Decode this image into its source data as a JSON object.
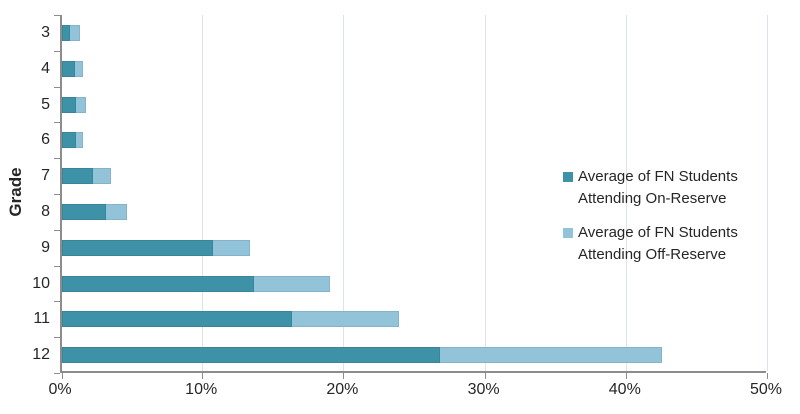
{
  "chart_data": {
    "type": "bar",
    "orientation": "horizontal",
    "stacked": true,
    "title": "",
    "xlabel": "",
    "ylabel": "Grade",
    "categories": [
      "3",
      "4",
      "5",
      "6",
      "7",
      "8",
      "9",
      "10",
      "11",
      "12"
    ],
    "series": [
      {
        "name": "Average of FN Students Attending On-Reserve",
        "color": "#3E92A8",
        "values": [
          0.6,
          0.9,
          1.0,
          1.0,
          2.2,
          3.1,
          10.7,
          13.6,
          16.3,
          26.8
        ]
      },
      {
        "name": "Average of FN Students Attending Off-Reserve",
        "color": "#92C3D8",
        "values": [
          0.7,
          0.6,
          0.7,
          0.5,
          1.3,
          1.5,
          2.6,
          5.4,
          7.6,
          15.7
        ]
      }
    ],
    "xlim": [
      0,
      50
    ],
    "x_tick_labels": [
      "0%",
      "10%",
      "20%",
      "30%",
      "40%",
      "50%"
    ],
    "x_tick_values": [
      0,
      10,
      20,
      30,
      40,
      50
    ],
    "grid": "vertical",
    "legend_position": "right-middle",
    "legend": [
      {
        "color": "#3E92A8",
        "lines": [
          "Average of FN Students",
          "Attending On-Reserve"
        ]
      },
      {
        "color": "#92C3D8",
        "lines": [
          "Average of FN Students",
          "Attending Off-Reserve"
        ]
      }
    ]
  },
  "colors": {
    "axis": "#8C8C8C",
    "gridline": "#DCE3EE",
    "text": "#262626",
    "on_reserve": "#3E92A8",
    "off_reserve": "#92C3D8"
  }
}
